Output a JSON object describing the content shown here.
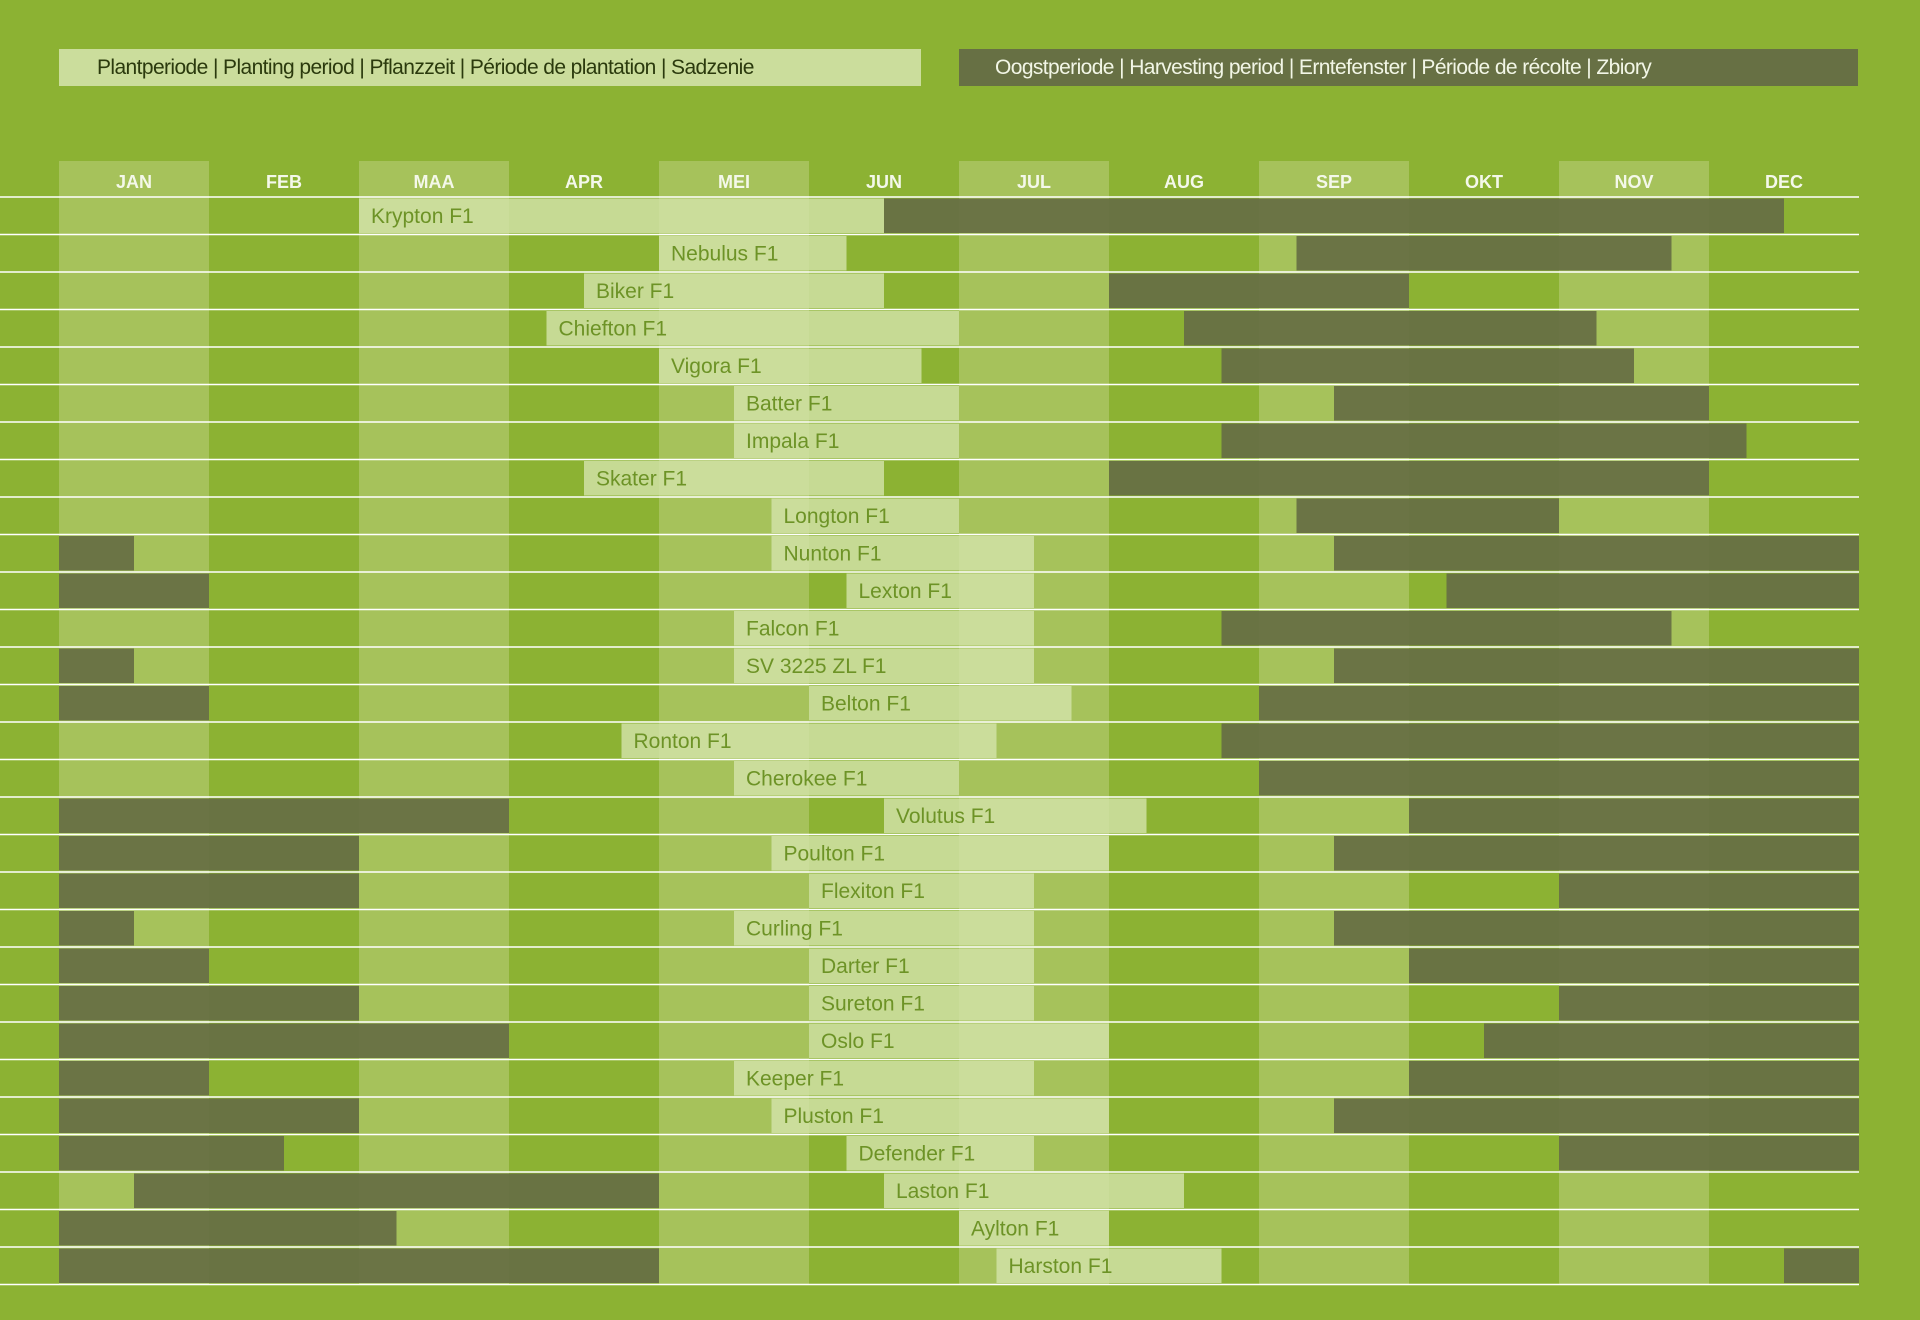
{
  "legend": {
    "planting_label": "Plantperiode | Planting period | Pflanzzeit | Période de plantation | Sadzenie",
    "harvest_label": "Oogstperiode | Harvesting period | Erntefenster | Période de récolte | Zbiory"
  },
  "colors": {
    "background": "#8cb233",
    "month_band": "#a6c25b",
    "planting": "#d3e3a9",
    "harvest": "#677044",
    "label_text": "#6d9326"
  },
  "chart_data": {
    "type": "gantt",
    "months": [
      "JAN",
      "FEB",
      "MAA",
      "APR",
      "MEI",
      "JUN",
      "JUL",
      "AUG",
      "SEP",
      "OKT",
      "NOV",
      "DEC"
    ],
    "units": "months from start of January",
    "rows": [
      {
        "name": "Krypton F1",
        "planting": [
          2,
          5.5
        ],
        "harvest": [
          [
            5.5,
            11.5
          ]
        ]
      },
      {
        "name": "Nebulus F1",
        "planting": [
          4,
          5.25
        ],
        "harvest": [
          [
            8.25,
            10.75
          ]
        ]
      },
      {
        "name": "Biker F1",
        "planting": [
          3.5,
          5.5
        ],
        "harvest": [
          [
            7,
            9
          ]
        ]
      },
      {
        "name": "Chiefton F1",
        "planting": [
          3.25,
          6
        ],
        "harvest": [
          [
            7.5,
            10.25
          ]
        ]
      },
      {
        "name": "Vigora F1",
        "planting": [
          4,
          5.75
        ],
        "harvest": [
          [
            7.75,
            10.5
          ]
        ]
      },
      {
        "name": "Batter F1",
        "planting": [
          4.5,
          6
        ],
        "harvest": [
          [
            8.5,
            11
          ]
        ]
      },
      {
        "name": "Impala F1",
        "planting": [
          4.5,
          6
        ],
        "harvest": [
          [
            7.75,
            11.25
          ]
        ]
      },
      {
        "name": "Skater F1",
        "planting": [
          3.5,
          5.5
        ],
        "harvest": [
          [
            7,
            11
          ]
        ]
      },
      {
        "name": "Longton F1",
        "planting": [
          4.75,
          6
        ],
        "harvest": [
          [
            8.25,
            10
          ]
        ]
      },
      {
        "name": "Nunton F1",
        "planting": [
          4.75,
          6.5
        ],
        "harvest": [
          [
            0,
            0.5
          ],
          [
            8.5,
            12
          ]
        ]
      },
      {
        "name": "Lexton F1",
        "planting": [
          5.25,
          6.5
        ],
        "harvest": [
          [
            0,
            1
          ],
          [
            9.25,
            12
          ]
        ]
      },
      {
        "name": "Falcon F1",
        "planting": [
          4.5,
          6.5
        ],
        "harvest": [
          [
            7.75,
            10.75
          ]
        ]
      },
      {
        "name": "SV 3225  ZL F1",
        "planting": [
          4.5,
          6.5
        ],
        "harvest": [
          [
            0,
            0.5
          ],
          [
            8.5,
            12
          ]
        ]
      },
      {
        "name": "Belton F1",
        "planting": [
          5,
          6.75
        ],
        "harvest": [
          [
            0,
            1
          ],
          [
            8,
            12
          ]
        ]
      },
      {
        "name": "Ronton F1",
        "planting": [
          3.75,
          6.25
        ],
        "harvest": [
          [
            7.75,
            12
          ]
        ]
      },
      {
        "name": "Cherokee F1",
        "planting": [
          4.5,
          6
        ],
        "harvest": [
          [
            8,
            12
          ]
        ]
      },
      {
        "name": "Volutus F1",
        "planting": [
          5.5,
          7.25
        ],
        "harvest": [
          [
            0,
            3
          ],
          [
            9,
            12
          ]
        ]
      },
      {
        "name": "Poulton F1",
        "planting": [
          4.75,
          7
        ],
        "harvest": [
          [
            0,
            2
          ],
          [
            8.5,
            12
          ]
        ]
      },
      {
        "name": "Flexiton F1",
        "planting": [
          5,
          6.5
        ],
        "harvest": [
          [
            0,
            2
          ],
          [
            10,
            12
          ]
        ]
      },
      {
        "name": "Curling F1",
        "planting": [
          4.5,
          6.5
        ],
        "harvest": [
          [
            0,
            0.5
          ],
          [
            8.5,
            12
          ]
        ]
      },
      {
        "name": "Darter F1",
        "planting": [
          5,
          6.5
        ],
        "harvest": [
          [
            0,
            1
          ],
          [
            9,
            12
          ]
        ]
      },
      {
        "name": "Sureton F1",
        "planting": [
          5,
          6.5
        ],
        "harvest": [
          [
            0,
            2
          ],
          [
            10,
            12
          ]
        ]
      },
      {
        "name": "Oslo F1",
        "planting": [
          5,
          7
        ],
        "harvest": [
          [
            0,
            3
          ],
          [
            9.5,
            12
          ]
        ]
      },
      {
        "name": "Keeper F1",
        "planting": [
          4.5,
          6.5
        ],
        "harvest": [
          [
            0,
            1
          ],
          [
            9,
            12
          ]
        ]
      },
      {
        "name": "Pluston F1",
        "planting": [
          4.75,
          7
        ],
        "harvest": [
          [
            0,
            2
          ],
          [
            8.5,
            12
          ]
        ]
      },
      {
        "name": "Defender F1",
        "planting": [
          5.25,
          6.5
        ],
        "harvest": [
          [
            0,
            1.5
          ],
          [
            10,
            12
          ]
        ]
      },
      {
        "name": "Laston F1",
        "planting": [
          5.5,
          7.5
        ],
        "harvest": [
          [
            0.5,
            4
          ]
        ]
      },
      {
        "name": "Aylton F1",
        "planting": [
          6,
          7
        ],
        "harvest": [
          [
            0,
            2.25
          ]
        ]
      },
      {
        "name": "Harston F1",
        "planting": [
          6.25,
          7.75
        ],
        "harvest": [
          [
            0,
            4
          ],
          [
            11.5,
            12
          ]
        ]
      }
    ]
  }
}
